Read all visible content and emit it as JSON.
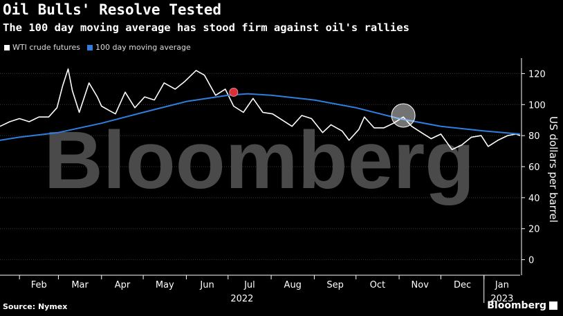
{
  "title": "Oil Bulls' Resolve Tested",
  "subtitle": "The 100 day moving average has stood firm against oil's rallies",
  "legend": {
    "wti": "WTI crude futures",
    "ma": "100 day moving average"
  },
  "source": "Source: Nymex",
  "brand": "Bloomberg",
  "watermark": "Bloomberg",
  "colors": {
    "background": "#000000",
    "wti": "#ffffff",
    "ma": "#2f7fe0",
    "marker_red": "#d9303b",
    "highlight": "#ffffff"
  },
  "chart_data": {
    "type": "line",
    "ylabel": "US dollars per barrel",
    "ylim": [
      -10,
      130
    ],
    "yticks": [
      0,
      20,
      40,
      60,
      80,
      100,
      120
    ],
    "xlim": [
      "2022-01-18",
      "2023-01-27"
    ],
    "month_ticks": [
      {
        "label": "Feb",
        "date": "2022-02-01"
      },
      {
        "label": "Mar",
        "date": "2022-03-01"
      },
      {
        "label": "Apr",
        "date": "2022-04-01"
      },
      {
        "label": "May",
        "date": "2022-05-01"
      },
      {
        "label": "Jun",
        "date": "2022-06-01"
      },
      {
        "label": "Jul",
        "date": "2022-07-01"
      },
      {
        "label": "Aug",
        "date": "2022-08-01"
      },
      {
        "label": "Sep",
        "date": "2022-09-01"
      },
      {
        "label": "Oct",
        "date": "2022-10-01"
      },
      {
        "label": "Nov",
        "date": "2022-11-01"
      },
      {
        "label": "Dec",
        "date": "2022-12-01"
      },
      {
        "label": "Jan",
        "date": "2023-01-01"
      }
    ],
    "year_labels": [
      {
        "label": "2022",
        "date": "2022-07-01"
      },
      {
        "label": "2023",
        "date": "2023-01-01"
      }
    ],
    "series": [
      {
        "name": "WTI crude futures",
        "points": [
          [
            "2022-01-18",
            86
          ],
          [
            "2022-01-25",
            89
          ],
          [
            "2022-02-01",
            91
          ],
          [
            "2022-02-08",
            89
          ],
          [
            "2022-02-15",
            92
          ],
          [
            "2022-02-22",
            92
          ],
          [
            "2022-02-28",
            98
          ],
          [
            "2022-03-04",
            112
          ],
          [
            "2022-03-08",
            123
          ],
          [
            "2022-03-11",
            109
          ],
          [
            "2022-03-16",
            95
          ],
          [
            "2022-03-23",
            114
          ],
          [
            "2022-03-29",
            105
          ],
          [
            "2022-04-01",
            99
          ],
          [
            "2022-04-07",
            96
          ],
          [
            "2022-04-11",
            94
          ],
          [
            "2022-04-18",
            108
          ],
          [
            "2022-04-25",
            98
          ],
          [
            "2022-05-02",
            105
          ],
          [
            "2022-05-09",
            103
          ],
          [
            "2022-05-16",
            114
          ],
          [
            "2022-05-24",
            110
          ],
          [
            "2022-05-31",
            115
          ],
          [
            "2022-06-08",
            122
          ],
          [
            "2022-06-14",
            119
          ],
          [
            "2022-06-22",
            106
          ],
          [
            "2022-06-29",
            110
          ],
          [
            "2022-07-05",
            99
          ],
          [
            "2022-07-12",
            95
          ],
          [
            "2022-07-19",
            104
          ],
          [
            "2022-07-26",
            95
          ],
          [
            "2022-08-02",
            94
          ],
          [
            "2022-08-09",
            90
          ],
          [
            "2022-08-16",
            86
          ],
          [
            "2022-08-23",
            93
          ],
          [
            "2022-08-30",
            91
          ],
          [
            "2022-09-07",
            82
          ],
          [
            "2022-09-13",
            87
          ],
          [
            "2022-09-21",
            83
          ],
          [
            "2022-09-26",
            77
          ],
          [
            "2022-10-03",
            84
          ],
          [
            "2022-10-07",
            92
          ],
          [
            "2022-10-14",
            85
          ],
          [
            "2022-10-21",
            85
          ],
          [
            "2022-10-28",
            88
          ],
          [
            "2022-11-04",
            92
          ],
          [
            "2022-11-10",
            86
          ],
          [
            "2022-11-17",
            82
          ],
          [
            "2022-11-24",
            78
          ],
          [
            "2022-12-01",
            81
          ],
          [
            "2022-12-09",
            71
          ],
          [
            "2022-12-16",
            74
          ],
          [
            "2022-12-23",
            79
          ],
          [
            "2022-12-30",
            80
          ],
          [
            "2023-01-04",
            73
          ],
          [
            "2023-01-11",
            77
          ],
          [
            "2023-01-18",
            80
          ],
          [
            "2023-01-24",
            81
          ],
          [
            "2023-01-27",
            80
          ]
        ]
      },
      {
        "name": "100 day moving average",
        "points": [
          [
            "2022-01-18",
            77
          ],
          [
            "2022-02-01",
            79
          ],
          [
            "2022-03-01",
            82
          ],
          [
            "2022-04-01",
            88
          ],
          [
            "2022-05-01",
            95
          ],
          [
            "2022-06-01",
            102
          ],
          [
            "2022-07-01",
            106
          ],
          [
            "2022-07-15",
            107
          ],
          [
            "2022-08-01",
            106
          ],
          [
            "2022-09-01",
            103
          ],
          [
            "2022-10-01",
            98
          ],
          [
            "2022-11-01",
            91
          ],
          [
            "2022-12-01",
            86
          ],
          [
            "2023-01-01",
            83
          ],
          [
            "2023-01-27",
            81
          ]
        ]
      }
    ],
    "markers": [
      {
        "date": "2022-07-05",
        "value": 108,
        "kind": "red-dot"
      },
      {
        "date": "2022-11-04",
        "value": 93,
        "kind": "highlight-circle"
      }
    ]
  }
}
